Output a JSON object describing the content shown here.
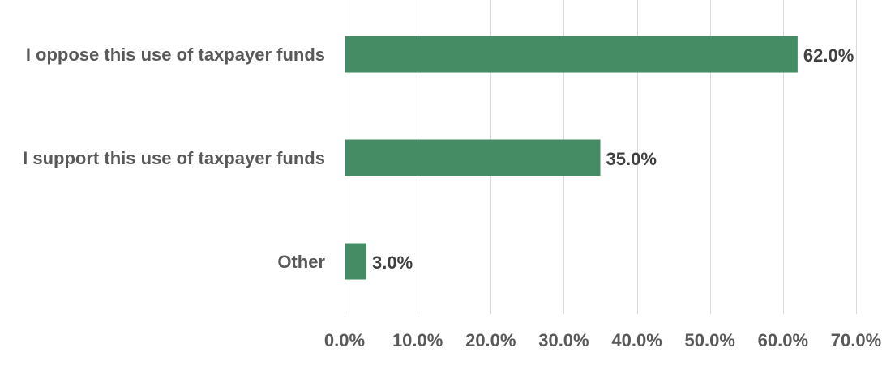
{
  "chart_data": {
    "type": "bar",
    "orientation": "horizontal",
    "categories": [
      "I oppose this use of taxpayer funds",
      "I support this use of taxpayer funds",
      "Other"
    ],
    "values": [
      62.0,
      35.0,
      3.0
    ],
    "data_labels": [
      "62.0%",
      "35.0%",
      "3.0%"
    ],
    "title": "",
    "xlabel": "",
    "ylabel": "",
    "xlim": [
      0,
      70
    ],
    "x_ticks": [
      0,
      10,
      20,
      30,
      40,
      50,
      60,
      70
    ],
    "x_tick_labels": [
      "0.0%",
      "10.0%",
      "20.0%",
      "30.0%",
      "40.0%",
      "50.0%",
      "60.0%",
      "70.0%"
    ],
    "grid": "vertical",
    "legend": "none",
    "colors": {
      "bar": "#458b64",
      "gridline": "#d9d9d9",
      "category_text": "#595959",
      "value_text": "#404040",
      "tick_text": "#595959"
    }
  }
}
